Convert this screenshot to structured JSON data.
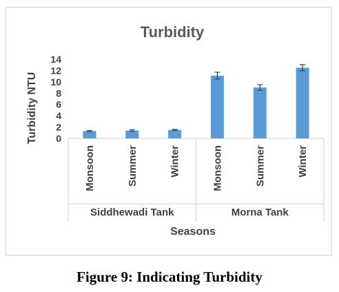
{
  "caption": "Figure 9: Indicating Turbidity",
  "chart_data": {
    "type": "bar",
    "title": "Turbidity",
    "xlabel": "Seasons",
    "ylabel": "Turbidity NTU",
    "ylim": [
      0,
      14
    ],
    "yticks": [
      "0",
      "2",
      "4",
      "6",
      "8",
      "10",
      "12",
      "14"
    ],
    "groups": [
      {
        "name": "Siddhewadi Tank",
        "categories": [
          "Monsoon",
          "Summer",
          "Winter"
        ]
      },
      {
        "name": "Morna Tank",
        "categories": [
          "Monsoon",
          "Summer",
          "Winter"
        ]
      }
    ],
    "categories": [
      "Monsoon",
      "Summer",
      "Winter",
      "Monsoon",
      "Summer",
      "Winter"
    ],
    "values": [
      1.3,
      1.4,
      1.5,
      11.1,
      9.0,
      12.5
    ],
    "errors": [
      0.1,
      0.15,
      0.1,
      0.6,
      0.5,
      0.55
    ],
    "grid": false,
    "legend": "none",
    "bar_color": "#5b9bd5",
    "error_color": "#404040"
  }
}
